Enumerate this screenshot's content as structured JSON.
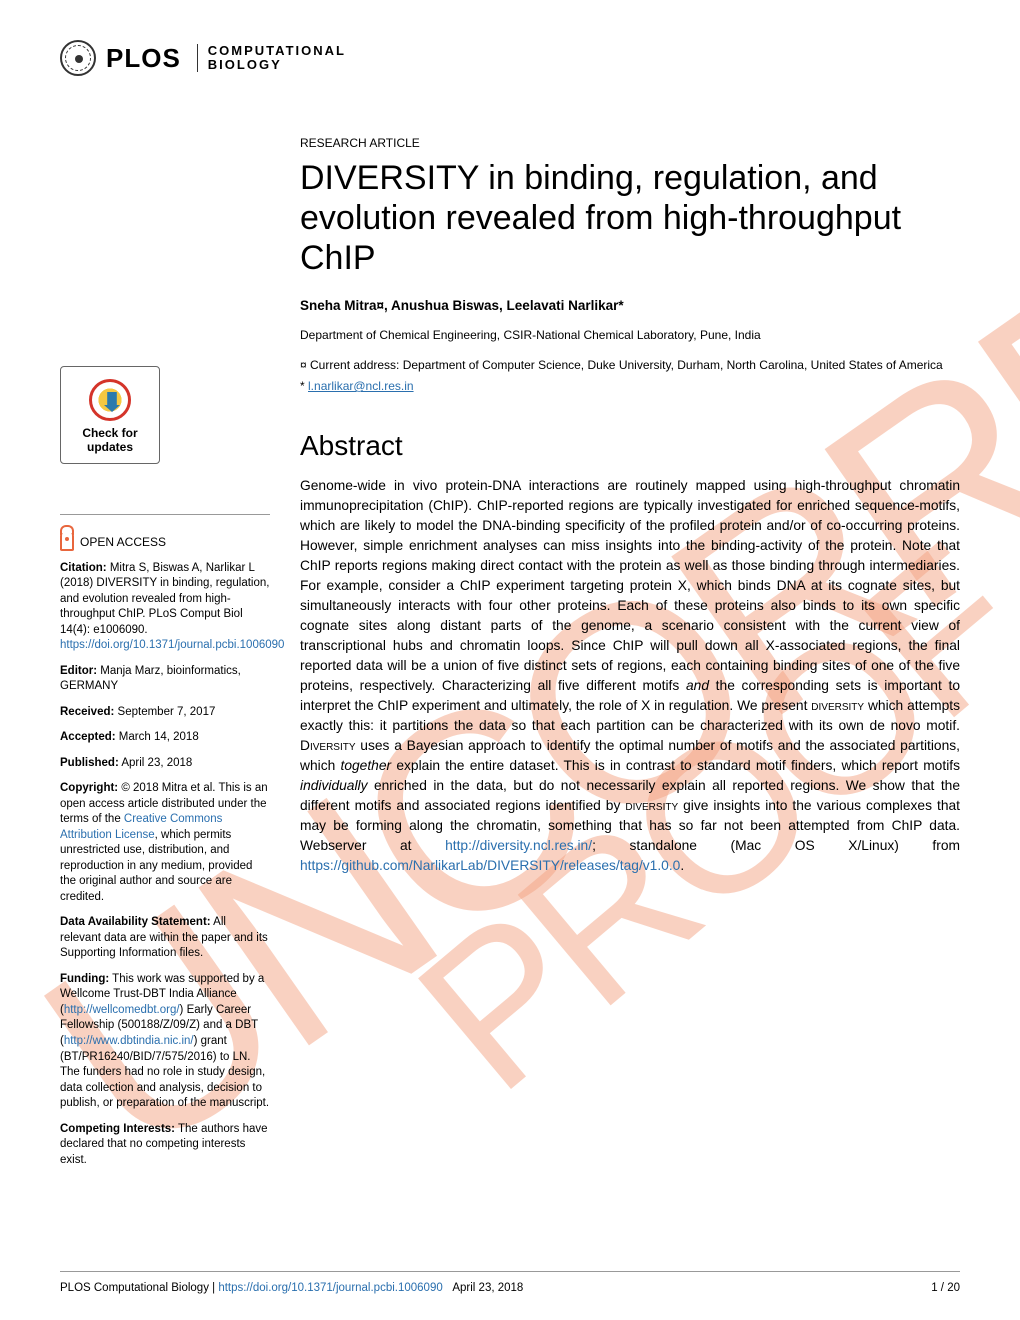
{
  "journal": {
    "name": "PLOS",
    "sub1": "COMPUTATIONAL",
    "sub2": "BIOLOGY"
  },
  "watermarks": {
    "uncorrected": "UNCORRECTED",
    "proof": "PROOF"
  },
  "check_updates": {
    "line1": "Check for",
    "line2": "updates"
  },
  "open_access_label": "OPEN ACCESS",
  "sidebar": {
    "citation_label": "Citation:",
    "citation_text": " Mitra S, Biswas A, Narlikar L (2018) DIVERSITY in binding, regulation, and evolution revealed from high-throughput ChIP. PLoS Comput Biol 14(4): e1006090. ",
    "citation_link": "https://doi.org/10.1371/journal.pcbi.1006090",
    "editor_label": "Editor:",
    "editor_text": " Manja Marz, bioinformatics, GERMANY",
    "received_label": "Received:",
    "received_text": " September 7, 2017",
    "accepted_label": "Accepted:",
    "accepted_text": " March 14, 2018",
    "published_label": "Published:",
    "published_text": " April 23, 2018",
    "copyright_label": "Copyright:",
    "copyright_text1": " © 2018 Mitra et al. This is an open access article distributed under the terms of the ",
    "copyright_link": "Creative Commons Attribution License",
    "copyright_text2": ", which permits unrestricted use, distribution, and reproduction in any medium, provided the original author and source are credited.",
    "data_label": "Data Availability Statement:",
    "data_text": " All relevant data are within the paper and its Supporting Information files.",
    "funding_label": "Funding:",
    "funding_text1": " This work was supported by a Wellcome Trust-DBT India Alliance (",
    "funding_link1": "http://wellcomedbt.org/",
    "funding_text2": ") Early Career Fellowship (500188/Z/09/Z) and a DBT (",
    "funding_link2": "http://www.dbtindia.nic.in/",
    "funding_text3": ") grant (BT/PR16240/BID/7/575/2016) to LN. The funders had no role in study design, data collection and analysis, decision to publish, or preparation of the manuscript.",
    "competing_label": "Competing Interests:",
    "competing_text": " The authors have declared that no competing interests exist."
  },
  "article": {
    "type": "RESEARCH ARTICLE",
    "title": "DIVERSITY in binding, regulation, and evolution revealed from high-throughput ChIP",
    "authors": "Sneha Mitra¤, Anushua Biswas, Leelavati Narlikar*",
    "affiliation": "Department of Chemical Engineering, CSIR-National Chemical Laboratory, Pune, India",
    "current_address": "¤ Current address: Department of Computer Science, Duke University, Durham, North Carolina, United States of America",
    "corresp_sym": "* ",
    "email": "l.narlikar@ncl.res.in",
    "abstract_heading": "Abstract",
    "abstract_p1": "Genome-wide in vivo protein-DNA interactions are routinely mapped using high-throughput chromatin immunoprecipitation (ChIP). ChIP-reported regions are typically investigated for enriched sequence-motifs, which are likely to model the DNA-binding specificity of the profiled protein and/or of co-occurring proteins. However, simple enrichment analyses can miss insights into the binding-activity of the protein. Note that ChIP reports regions making direct contact with the protein as well as those binding through intermediaries. For example, consider a ChIP experiment targeting protein X, which binds DNA at its cognate sites, but simultaneously interacts with four other proteins. Each of these proteins also binds to its own specific cognate sites along distant parts of the genome, a scenario consistent with the current view of transcriptional hubs and chromatin loops. Since ChIP will pull down all X-associated regions, the final reported data will be a union of five distinct sets of regions, each containing binding sites of one of the five proteins, respectively. Characterizing all five different motifs ",
    "abstract_i1": "and",
    "abstract_p2": " the corresponding sets is important to interpret the ChIP experiment and ultimately, the role of X in regulation. We present ",
    "abstract_sc1": "diversity",
    "abstract_p3": " which attempts exactly this: it partitions the data so that each partition can be characterized with its own de novo motif. ",
    "abstract_sc2": "Diversity",
    "abstract_p4": " uses a Bayesian approach to identify the optimal number of motifs and the associated partitions, which ",
    "abstract_i2": "together",
    "abstract_p5": " explain the entire dataset. This is in contrast to standard motif finders, which report motifs ",
    "abstract_i3": "individually",
    "abstract_p6": " enriched in the data, but do not necessarily explain all reported regions. We show that the different motifs and associated regions identified by ",
    "abstract_sc3": "diversity",
    "abstract_p7": " give insights into the various complexes that may be forming along the chromatin, something that has so far not been attempted from ChIP data. Webserver at ",
    "abstract_link1": "http://diversity.ncl.res.in/",
    "abstract_p8": "; standalone (Mac OS X/Linux) from ",
    "abstract_link2": "https://github.com/NarlikarLab/DIVERSITY/releases/tag/v1.0.0",
    "abstract_p9": "."
  },
  "footer": {
    "journal": "PLOS Computational Biology | ",
    "doi": "https://doi.org/10.1371/journal.pcbi.1006090",
    "date": "April 23, 2018",
    "page": "1 / 20"
  }
}
